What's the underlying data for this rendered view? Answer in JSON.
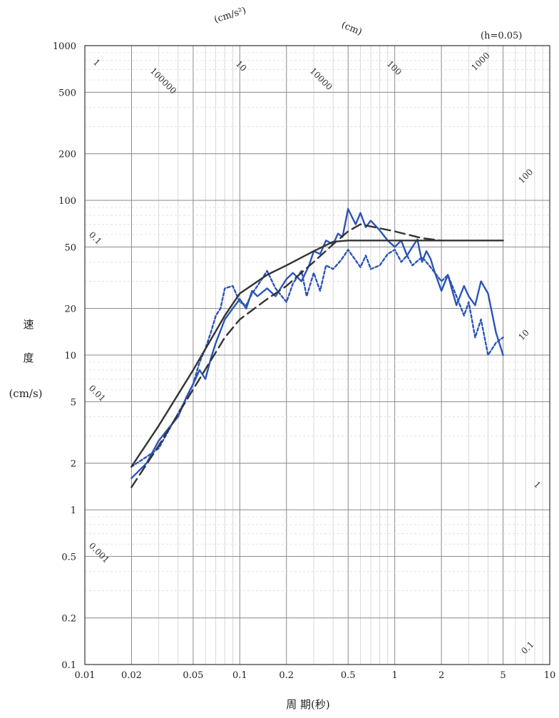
{
  "chart_data": {
    "type": "line",
    "scale": "log-log (tripartite)",
    "xlabel": "周 期(秒)",
    "ylabel": "速 度 (cm/s)",
    "ylabel_lines": [
      "速",
      "度",
      "(cm/s)"
    ],
    "xlim": [
      0.01,
      10
    ],
    "ylim": [
      0.1,
      1000
    ],
    "x_ticks": [
      0.01,
      0.02,
      0.05,
      0.1,
      0.2,
      0.5,
      1,
      2,
      5,
      10
    ],
    "x_tick_labels": [
      "0.01",
      "0.02",
      "0.05",
      "0.1",
      "0.2",
      "0.5",
      "1",
      "2",
      "5",
      "10"
    ],
    "y_ticks": [
      0.1,
      0.2,
      0.5,
      1,
      2,
      5,
      10,
      20,
      50,
      100,
      200,
      500,
      1000
    ],
    "y_tick_labels": [
      "0.1",
      "0.2",
      "0.5",
      "1",
      "2",
      "5",
      "10",
      "20",
      "50",
      "100",
      "200",
      "500",
      "1000"
    ],
    "grid": true,
    "annotations": {
      "accel_unit": "(cm/s²)",
      "disp_unit": "(cm)",
      "damping": "(h=0.05)",
      "top_labels": [
        "1",
        "100000",
        "10",
        "10000",
        "100",
        "1000"
      ],
      "right_labels": [
        "100",
        "10",
        "1",
        "0.1"
      ],
      "left_labels": [
        "0.1",
        "0.01",
        "0.001"
      ]
    },
    "series": [
      {
        "style": "solid-black",
        "color": "#333333",
        "x": [
          0.02,
          0.03,
          0.05,
          0.08,
          0.1,
          0.15,
          0.2,
          0.3,
          0.4,
          0.5,
          1,
          2,
          5
        ],
        "y": [
          1.9,
          3.5,
          8,
          18,
          25,
          33,
          38,
          47,
          54,
          55,
          55,
          55,
          55
        ]
      },
      {
        "style": "dashed-black",
        "color": "#333333",
        "x": [
          0.02,
          0.03,
          0.05,
          0.08,
          0.1,
          0.15,
          0.2,
          0.3,
          0.4,
          0.5,
          0.6,
          1,
          1.5,
          2
        ],
        "y": [
          1.4,
          2.6,
          6,
          13,
          17,
          23,
          28,
          40,
          52,
          63,
          70,
          63,
          57,
          55
        ]
      },
      {
        "style": "solid-blue",
        "color": "#2b54b8",
        "x": [
          0.02,
          0.025,
          0.03,
          0.035,
          0.04,
          0.045,
          0.05,
          0.055,
          0.06,
          0.065,
          0.07,
          0.08,
          0.09,
          0.1,
          0.11,
          0.12,
          0.13,
          0.15,
          0.17,
          0.2,
          0.22,
          0.25,
          0.28,
          0.3,
          0.33,
          0.36,
          0.4,
          0.43,
          0.46,
          0.5,
          0.53,
          0.56,
          0.6,
          0.65,
          0.7,
          0.8,
          0.9,
          1.0,
          1.1,
          1.2,
          1.3,
          1.4,
          1.5,
          1.6,
          1.7,
          1.8,
          2.0,
          2.2,
          2.5,
          2.8,
          3.0,
          3.3,
          3.6,
          4.0,
          4.5,
          5.0
        ],
        "y": [
          1.6,
          2.0,
          2.8,
          3.4,
          4.0,
          5.3,
          6.5,
          8.0,
          7.0,
          9.5,
          12,
          17,
          20,
          23,
          20,
          26,
          24,
          27,
          24,
          31,
          34,
          30,
          38,
          47,
          45,
          55,
          52,
          61,
          58,
          88,
          78,
          70,
          83,
          67,
          74,
          64,
          55,
          50,
          55,
          44,
          50,
          56,
          40,
          47,
          42,
          35,
          26,
          33,
          21,
          28,
          24,
          21,
          30,
          25,
          14,
          10
        ]
      },
      {
        "style": "dotted-blue",
        "color": "#2b54b8",
        "x": [
          0.02,
          0.025,
          0.03,
          0.035,
          0.04,
          0.045,
          0.05,
          0.055,
          0.06,
          0.065,
          0.07,
          0.075,
          0.08,
          0.09,
          0.1,
          0.11,
          0.12,
          0.13,
          0.15,
          0.17,
          0.2,
          0.22,
          0.25,
          0.27,
          0.3,
          0.33,
          0.36,
          0.4,
          0.45,
          0.5,
          0.55,
          0.6,
          0.65,
          0.7,
          0.8,
          0.9,
          1.0,
          1.1,
          1.2,
          1.3,
          1.5,
          1.7,
          2.0,
          2.2,
          2.5,
          2.8,
          3.0,
          3.3,
          3.6,
          4.0,
          4.5,
          5.0
        ],
        "y": [
          1.9,
          2.2,
          2.5,
          3.3,
          4.2,
          5.2,
          6.5,
          9.0,
          11,
          14,
          18,
          20,
          27,
          28,
          22,
          21,
          25,
          28,
          35,
          27,
          22,
          29,
          35,
          24,
          34,
          26,
          38,
          36,
          41,
          48,
          42,
          37,
          44,
          36,
          38,
          45,
          48,
          40,
          44,
          38,
          43,
          37,
          30,
          33,
          24,
          18,
          22,
          13,
          17,
          10,
          12,
          13
        ]
      }
    ]
  }
}
